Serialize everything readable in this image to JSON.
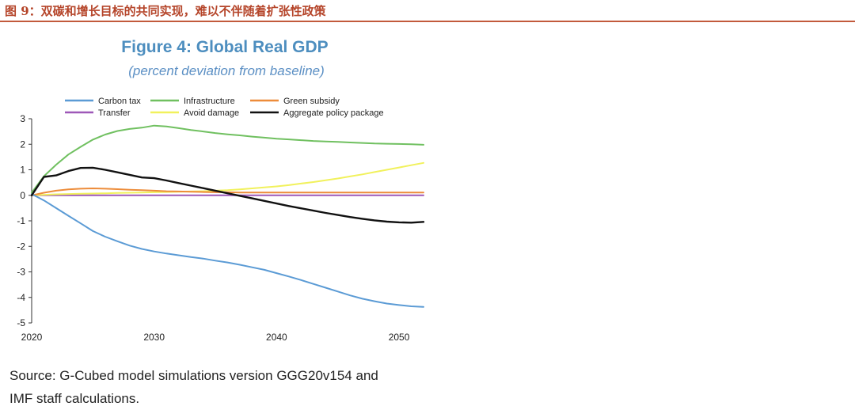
{
  "page": {
    "caption": "图 9：双碳和增长目标的共同实现，难以不伴随着扩张性政策",
    "source_line1": "Source: G-Cubed model simulations version GGG20v154 and",
    "source_line2": "IMF staff calculations."
  },
  "chart_data": {
    "type": "line",
    "title": "Figure 4: Global Real GDP",
    "subtitle": "(percent deviation from baseline)",
    "xlim": [
      2020,
      2052
    ],
    "ylim": [
      -5,
      3
    ],
    "x_ticks": [
      "2020",
      "2030",
      "2040",
      "2050"
    ],
    "x_tick_values": [
      2020,
      2030,
      2040,
      2050
    ],
    "y_ticks": [
      "3",
      "2",
      "1",
      "0",
      "-1",
      "-2",
      "-3",
      "-4",
      "-5"
    ],
    "y_tick_values": [
      3,
      2,
      1,
      0,
      -1,
      -2,
      -3,
      -4,
      -5
    ],
    "x": [
      2020,
      2021,
      2022,
      2023,
      2024,
      2025,
      2026,
      2027,
      2028,
      2029,
      2030,
      2031,
      2032,
      2033,
      2034,
      2035,
      2036,
      2037,
      2038,
      2039,
      2040,
      2041,
      2042,
      2043,
      2044,
      2045,
      2046,
      2047,
      2048,
      2049,
      2050,
      2051,
      2052
    ],
    "series": [
      {
        "name": "Carbon tax",
        "color": "#5b9bd5",
        "values": [
          0.05,
          -0.2,
          -0.5,
          -0.8,
          -1.1,
          -1.4,
          -1.62,
          -1.8,
          -1.97,
          -2.1,
          -2.2,
          -2.28,
          -2.35,
          -2.42,
          -2.48,
          -2.56,
          -2.63,
          -2.72,
          -2.82,
          -2.92,
          -3.05,
          -3.18,
          -3.32,
          -3.47,
          -3.62,
          -3.77,
          -3.92,
          -4.05,
          -4.15,
          -4.24,
          -4.3,
          -4.35,
          -4.37
        ]
      },
      {
        "name": "Infrastructure",
        "color": "#70c060",
        "values": [
          0.1,
          0.75,
          1.2,
          1.6,
          1.9,
          2.18,
          2.38,
          2.52,
          2.6,
          2.65,
          2.73,
          2.7,
          2.63,
          2.56,
          2.5,
          2.44,
          2.39,
          2.35,
          2.3,
          2.26,
          2.22,
          2.19,
          2.16,
          2.13,
          2.11,
          2.09,
          2.07,
          2.05,
          2.03,
          2.02,
          2.01,
          2.0,
          1.98
        ]
      },
      {
        "name": "Green subsidy",
        "color": "#ed8c3a",
        "values": [
          0.0,
          0.1,
          0.18,
          0.23,
          0.26,
          0.27,
          0.26,
          0.24,
          0.22,
          0.2,
          0.18,
          0.16,
          0.15,
          0.14,
          0.13,
          0.12,
          0.12,
          0.11,
          0.11,
          0.11,
          0.11,
          0.11,
          0.11,
          0.11,
          0.11,
          0.11,
          0.11,
          0.11,
          0.11,
          0.11,
          0.11,
          0.11,
          0.11
        ]
      },
      {
        "name": "Transfer",
        "color": "#9e58b8",
        "values": [
          0.0,
          0.0,
          0.0,
          0.0,
          0.0,
          0.0,
          0.0,
          0.0,
          0.0,
          0.0,
          0.0,
          0.0,
          0.0,
          0.0,
          0.0,
          0.0,
          0.0,
          0.0,
          0.0,
          0.0,
          0.0,
          0.0,
          0.0,
          0.0,
          0.0,
          0.0,
          0.0,
          0.0,
          0.0,
          0.0,
          0.0,
          0.0,
          0.0
        ]
      },
      {
        "name": "Avoid damage",
        "color": "#f1f15c",
        "values": [
          0.0,
          0.02,
          0.04,
          0.05,
          0.06,
          0.07,
          0.08,
          0.09,
          0.1,
          0.11,
          0.12,
          0.13,
          0.14,
          0.15,
          0.16,
          0.18,
          0.2,
          0.23,
          0.27,
          0.31,
          0.35,
          0.4,
          0.46,
          0.52,
          0.59,
          0.66,
          0.74,
          0.82,
          0.91,
          1.0,
          1.09,
          1.18,
          1.27
        ]
      },
      {
        "name": "Aggregate policy package",
        "color": "#111111",
        "values": [
          0.0,
          0.72,
          0.78,
          0.95,
          1.07,
          1.08,
          1.0,
          0.9,
          0.8,
          0.7,
          0.67,
          0.58,
          0.48,
          0.38,
          0.28,
          0.18,
          0.08,
          -0.02,
          -0.12,
          -0.22,
          -0.32,
          -0.42,
          -0.51,
          -0.6,
          -0.69,
          -0.77,
          -0.85,
          -0.92,
          -0.98,
          -1.03,
          -1.06,
          -1.07,
          -1.04
        ]
      }
    ],
    "legend_position": "top"
  }
}
